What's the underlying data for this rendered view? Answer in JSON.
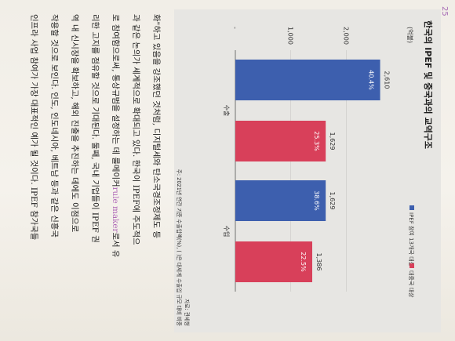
{
  "page": {
    "number": "25"
  },
  "chart_data": {
    "type": "bar",
    "title": "한국의 IPEF 및 중국과의 교역구조",
    "ylabel": "(억불)",
    "yticks": [
      "2,000",
      "1,000",
      "-"
    ],
    "ytick_values": [
      2000,
      1000,
      0
    ],
    "ylim": [
      0,
      2800
    ],
    "categories": [
      "수출",
      "수입"
    ],
    "legend_position": "top-right",
    "series": [
      {
        "name": "IPEF 참여 13개국 대상",
        "color": "#3d5fae",
        "values": [
          2610,
          1629
        ],
        "labels": [
          "2,610",
          "1,629"
        ],
        "shares": [
          "40.4%",
          "38.6%"
        ]
      },
      {
        "name": "대중국 대상",
        "color": "#d8405a",
        "values": [
          1629,
          1386
        ],
        "labels": [
          "1,629",
          "1,386"
        ],
        "shares": [
          "25.3%",
          "22.5%"
        ]
      }
    ],
    "notes": [
      "자료: 관세청",
      "주: 2021년 연간 기준 수출입액(%), ( )은 대세계 수출입 규모 대비 비중"
    ]
  },
  "body_text": [
    {
      "pre": "",
      "hl": "",
      "post": "화\"하고 있음을 강조했던 것처럼, 디지털세와 탄소국경조정제도 등"
    },
    {
      "pre": "과 같은 논의가 세계적으로 확대되고 있다. 한국이 IPEF에 주도적으",
      "hl": "",
      "post": ""
    },
    {
      "pre": "로 참여함으로써, 통상규범을 설정하는 데 룰메이커",
      "hl": "rule maker",
      "post": "로서 유"
    },
    {
      "pre": "리한 고지를 점유할 것으로 기대된다. 둘째, 국내 기업들이 IPEF 권",
      "hl": "",
      "post": ""
    },
    {
      "pre": "역 내 신시장을 확보하고, 해외 진출을 추진하는 데에도 이점으로",
      "hl": "",
      "post": ""
    },
    {
      "pre": "작용할 것으로 보인다. 인도, 인도네시아, 베트남 등과 같은 신흥국",
      "hl": "",
      "post": ""
    },
    {
      "pre": "인프라 사업 참여가 가장 대표적인 예가 될 것이다. IPEF 참가국들",
      "hl": "",
      "post": ""
    }
  ]
}
